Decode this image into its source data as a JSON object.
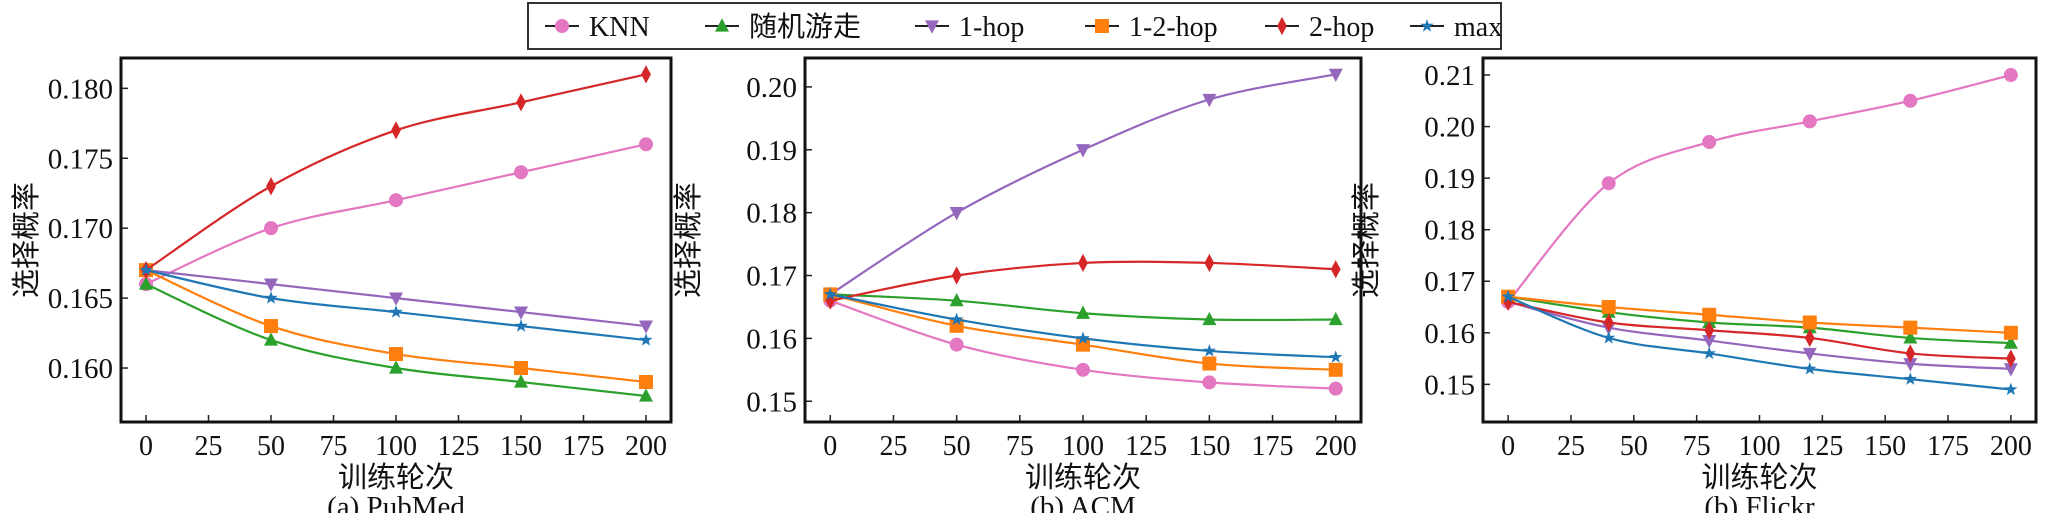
{
  "colors": {
    "KNN": "#e377c2",
    "随机游走": "#2ca02c",
    "1-hop": "#9467bd",
    "1-2-hop": "#ff7f0e",
    "2-hop": "#d62728",
    "max": "#1f77b4"
  },
  "legend": {
    "position": "top-center",
    "entries": [
      {
        "label": "KNN",
        "marker": "circle"
      },
      {
        "label": "随机游走",
        "marker": "triangle-up"
      },
      {
        "label": "1-hop",
        "marker": "triangle-down"
      },
      {
        "label": "1-2-hop",
        "marker": "square"
      },
      {
        "label": "2-hop",
        "marker": "diamond"
      },
      {
        "label": "max",
        "marker": "star"
      }
    ]
  },
  "chart_data": [
    {
      "type": "line",
      "title": "(a) PubMed",
      "xlabel": "训练轮次",
      "ylabel": "选择概率",
      "xlim": [
        -10,
        210
      ],
      "ylim": [
        0.15614,
        0.18217
      ],
      "xticks": [
        0,
        25,
        50,
        75,
        100,
        125,
        150,
        175,
        200
      ],
      "yticks": [
        0.16,
        0.165,
        0.17,
        0.175,
        0.18
      ],
      "ytick_labels": [
        "0.160",
        "0.165",
        "0.170",
        "0.175",
        "0.180"
      ],
      "x": [
        0,
        50,
        100,
        150,
        200
      ],
      "series": [
        {
          "name": "KNN",
          "values": [
            0.166,
            0.17,
            0.172,
            0.174,
            0.176
          ]
        },
        {
          "name": "随机游走",
          "values": [
            0.166,
            0.162,
            0.16,
            0.159,
            0.158
          ]
        },
        {
          "name": "1-hop",
          "values": [
            0.167,
            0.166,
            0.165,
            0.164,
            0.163
          ]
        },
        {
          "name": "1-2-hop",
          "values": [
            0.167,
            0.163,
            0.161,
            0.16,
            0.159
          ]
        },
        {
          "name": "2-hop",
          "values": [
            0.167,
            0.173,
            0.177,
            0.179,
            0.181
          ]
        },
        {
          "name": "max",
          "values": [
            0.167,
            0.165,
            0.164,
            0.163,
            0.162
          ]
        }
      ]
    },
    {
      "type": "line",
      "title": "(b) ACM",
      "xlabel": "训练轮次",
      "ylabel": "选择概率",
      "xlim": [
        -10,
        210
      ],
      "ylim": [
        0.1467,
        0.2046
      ],
      "xticks": [
        0,
        25,
        50,
        75,
        100,
        125,
        150,
        175,
        200
      ],
      "yticks": [
        0.15,
        0.16,
        0.17,
        0.18,
        0.19,
        0.2
      ],
      "ytick_labels": [
        "0.15",
        "0.16",
        "0.17",
        "0.18",
        "0.19",
        "0.20"
      ],
      "x": [
        0,
        50,
        100,
        150,
        200
      ],
      "series": [
        {
          "name": "KNN",
          "values": [
            0.166,
            0.159,
            0.155,
            0.153,
            0.152
          ]
        },
        {
          "name": "随机游走",
          "values": [
            0.167,
            0.166,
            0.164,
            0.163,
            0.163
          ]
        },
        {
          "name": "1-hop",
          "values": [
            0.167,
            0.18,
            0.19,
            0.198,
            0.202
          ]
        },
        {
          "name": "1-2-hop",
          "values": [
            0.167,
            0.162,
            0.159,
            0.156,
            0.155
          ]
        },
        {
          "name": "2-hop",
          "values": [
            0.166,
            0.17,
            0.172,
            0.172,
            0.171
          ]
        },
        {
          "name": "max",
          "values": [
            0.167,
            0.163,
            0.16,
            0.158,
            0.157
          ]
        }
      ]
    },
    {
      "type": "line",
      "title": "(b) Flickr",
      "xlabel": "训练轮次",
      "ylabel": "选择概率",
      "xlim": [
        -10,
        210
      ],
      "ylim": [
        0.1427,
        0.2133
      ],
      "xticks": [
        0,
        25,
        50,
        75,
        100,
        125,
        150,
        175,
        200
      ],
      "yticks": [
        0.15,
        0.16,
        0.17,
        0.18,
        0.19,
        0.2,
        0.21
      ],
      "ytick_labels": [
        "0.15",
        "0.16",
        "0.17",
        "0.18",
        "0.19",
        "0.20",
        "0.21"
      ],
      "x": [
        0,
        40,
        80,
        120,
        160,
        200
      ],
      "series": [
        {
          "name": "KNN",
          "values": [
            0.166,
            0.189,
            0.197,
            0.201,
            0.205,
            0.21
          ]
        },
        {
          "name": "随机游走",
          "values": [
            0.167,
            0.164,
            0.162,
            0.161,
            0.159,
            0.158
          ]
        },
        {
          "name": "1-hop",
          "values": [
            0.166,
            0.161,
            0.1585,
            0.156,
            0.154,
            0.153
          ]
        },
        {
          "name": "1-2-hop",
          "values": [
            0.167,
            0.165,
            0.1635,
            0.162,
            0.161,
            0.16
          ]
        },
        {
          "name": "2-hop",
          "values": [
            0.166,
            0.162,
            0.1605,
            0.159,
            0.156,
            0.155
          ]
        },
        {
          "name": "max",
          "values": [
            0.167,
            0.159,
            0.156,
            0.153,
            0.151,
            0.149
          ]
        }
      ]
    }
  ]
}
